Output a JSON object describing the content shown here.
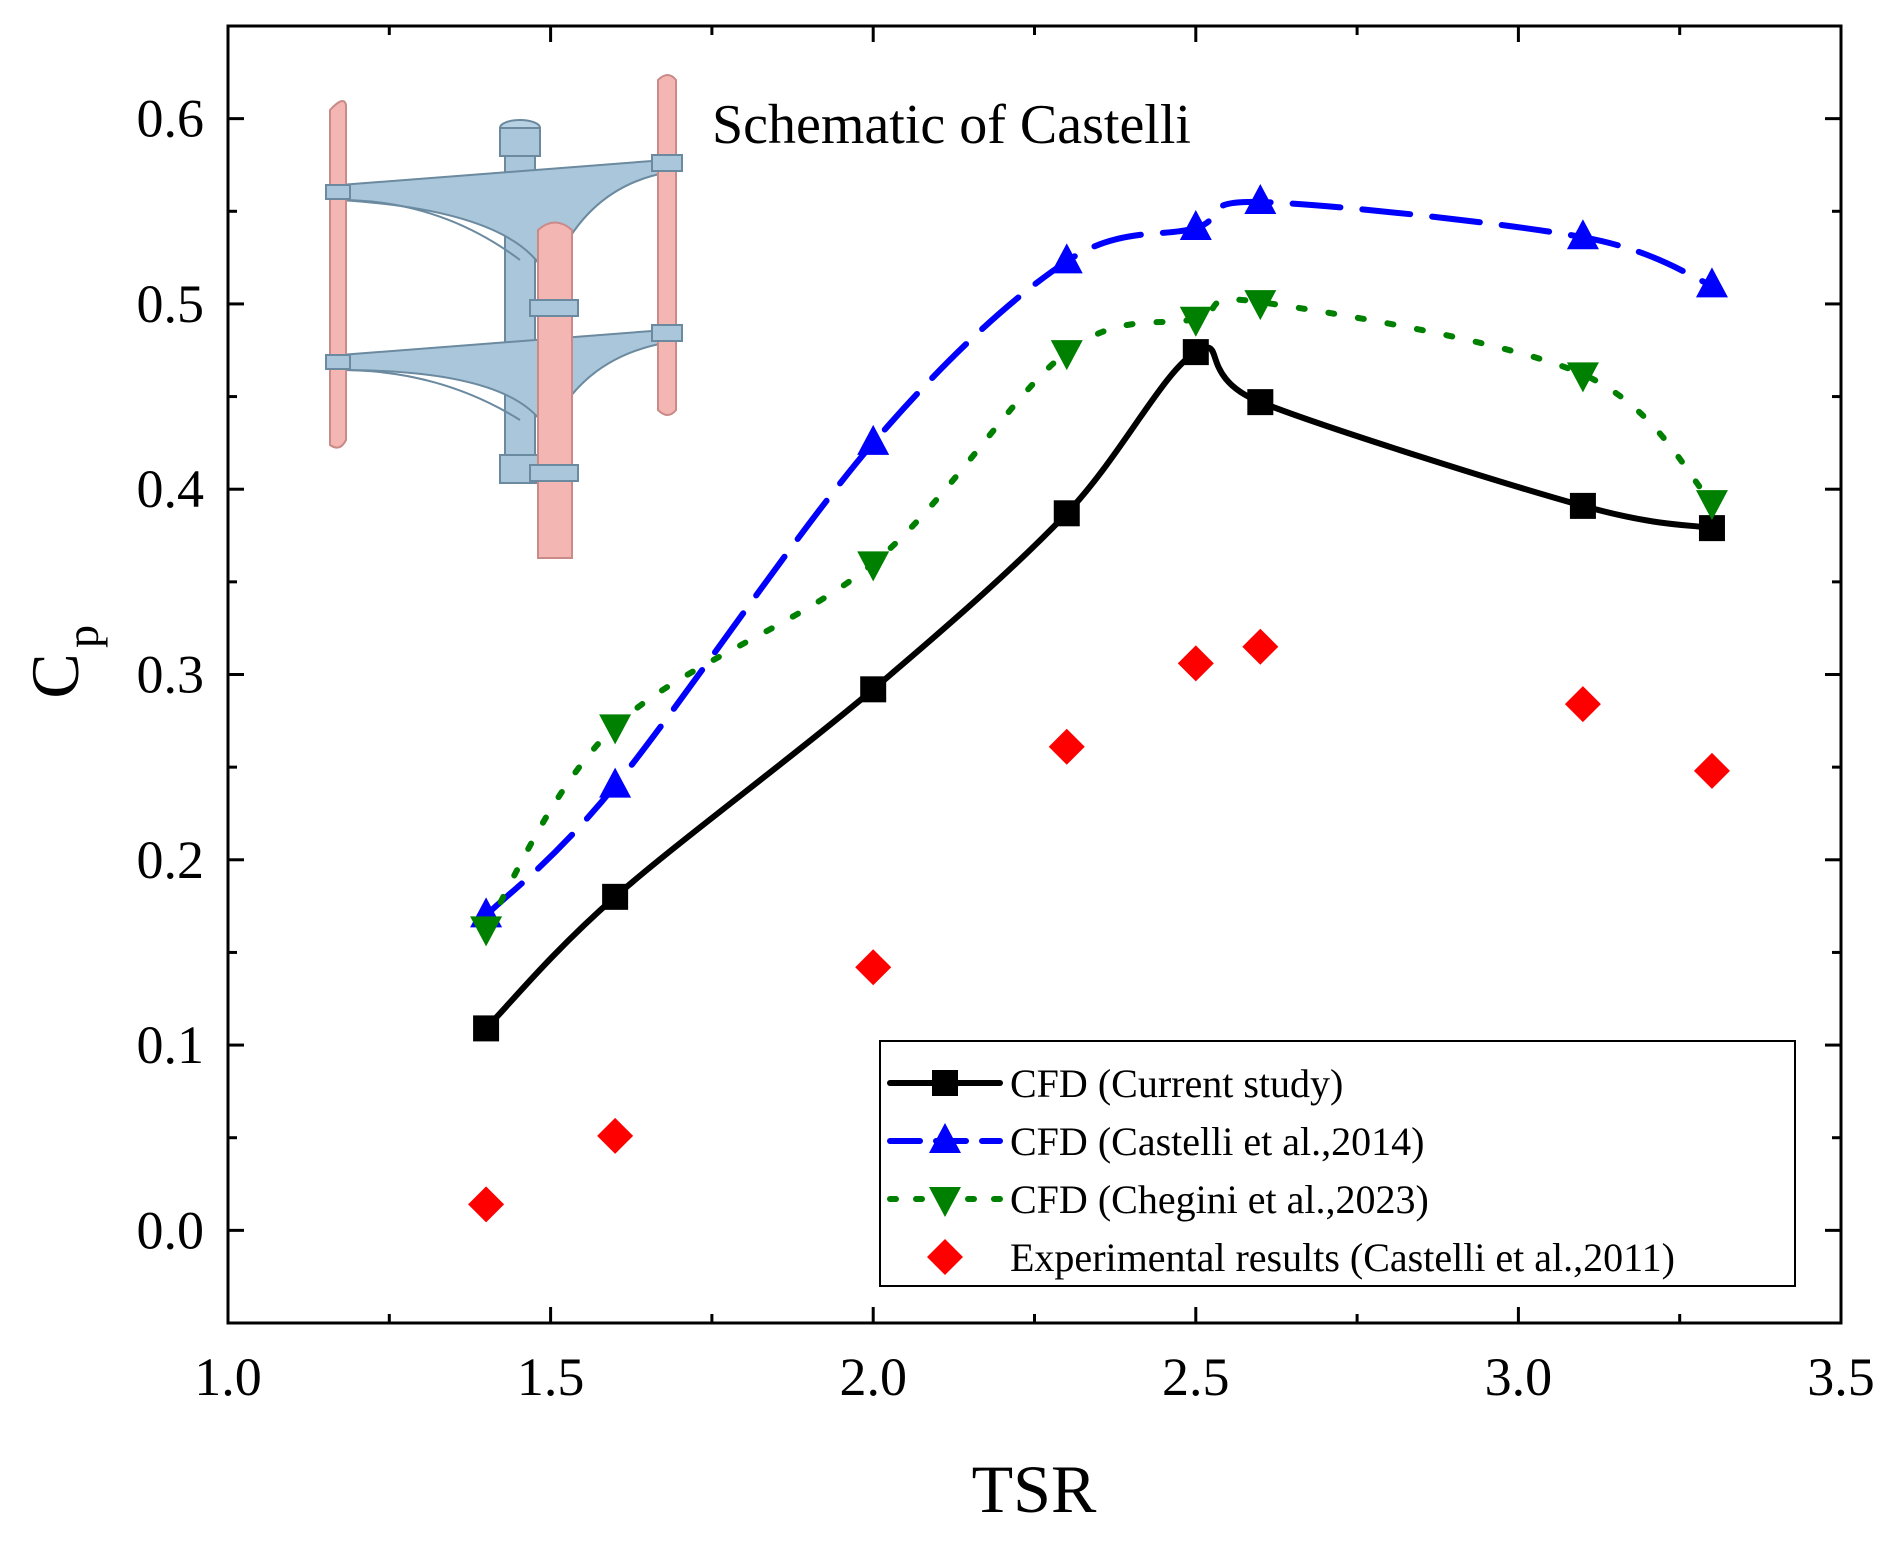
{
  "chart_data": {
    "type": "line",
    "title": "",
    "xlabel": "TSR",
    "ylabel_main": "C",
    "ylabel_sub": "p",
    "xlim": [
      1.0,
      3.5
    ],
    "ylim": [
      -0.05,
      0.65
    ],
    "x_ticks": [
      1.0,
      1.5,
      2.0,
      2.5,
      3.0,
      3.5
    ],
    "x_tick_labels": [
      "1.0",
      "1.5",
      "2.0",
      "2.5",
      "3.0",
      "3.5"
    ],
    "y_ticks": [
      0.0,
      0.1,
      0.2,
      0.3,
      0.4,
      0.5,
      0.6
    ],
    "y_tick_labels": [
      "0.0",
      "0.1",
      "0.2",
      "0.3",
      "0.4",
      "0.5",
      "0.6"
    ],
    "grid": false,
    "legend_position": "bottom-right",
    "annotation": "Schematic of Castelli",
    "series": [
      {
        "name": "CFD (Current study)",
        "color": "#000000",
        "line": "solid",
        "marker": "square",
        "x": [
          1.4,
          1.6,
          2.0,
          2.3,
          2.5,
          2.6,
          3.1,
          3.3
        ],
        "values": [
          0.109,
          0.18,
          0.292,
          0.387,
          0.474,
          0.447,
          0.391,
          0.379
        ]
      },
      {
        "name": "CFD (Castelli et al.,2014)",
        "color": "#0000ff",
        "line": "dashed",
        "marker": "triangle-up",
        "x": [
          1.4,
          1.6,
          2.0,
          2.3,
          2.5,
          2.6,
          3.1,
          3.3
        ],
        "values": [
          0.17,
          0.24,
          0.425,
          0.523,
          0.541,
          0.555,
          0.536,
          0.51
        ]
      },
      {
        "name": "CFD (Chegini et al.,2023)",
        "color": "#008000",
        "line": "dotted",
        "marker": "triangle-down",
        "x": [
          1.4,
          1.6,
          2.0,
          2.3,
          2.5,
          2.6,
          3.1,
          3.3
        ],
        "values": [
          0.163,
          0.272,
          0.36,
          0.474,
          0.492,
          0.501,
          0.462,
          0.393
        ]
      },
      {
        "name": "Experimental results (Castelli et al.,2011)",
        "color": "#ff0000",
        "line": "none",
        "marker": "diamond",
        "x": [
          1.4,
          1.6,
          2.0,
          2.3,
          2.5,
          2.6,
          3.1,
          3.3
        ],
        "values": [
          0.014,
          0.051,
          0.142,
          0.261,
          0.306,
          0.315,
          0.284,
          0.248
        ]
      }
    ]
  }
}
